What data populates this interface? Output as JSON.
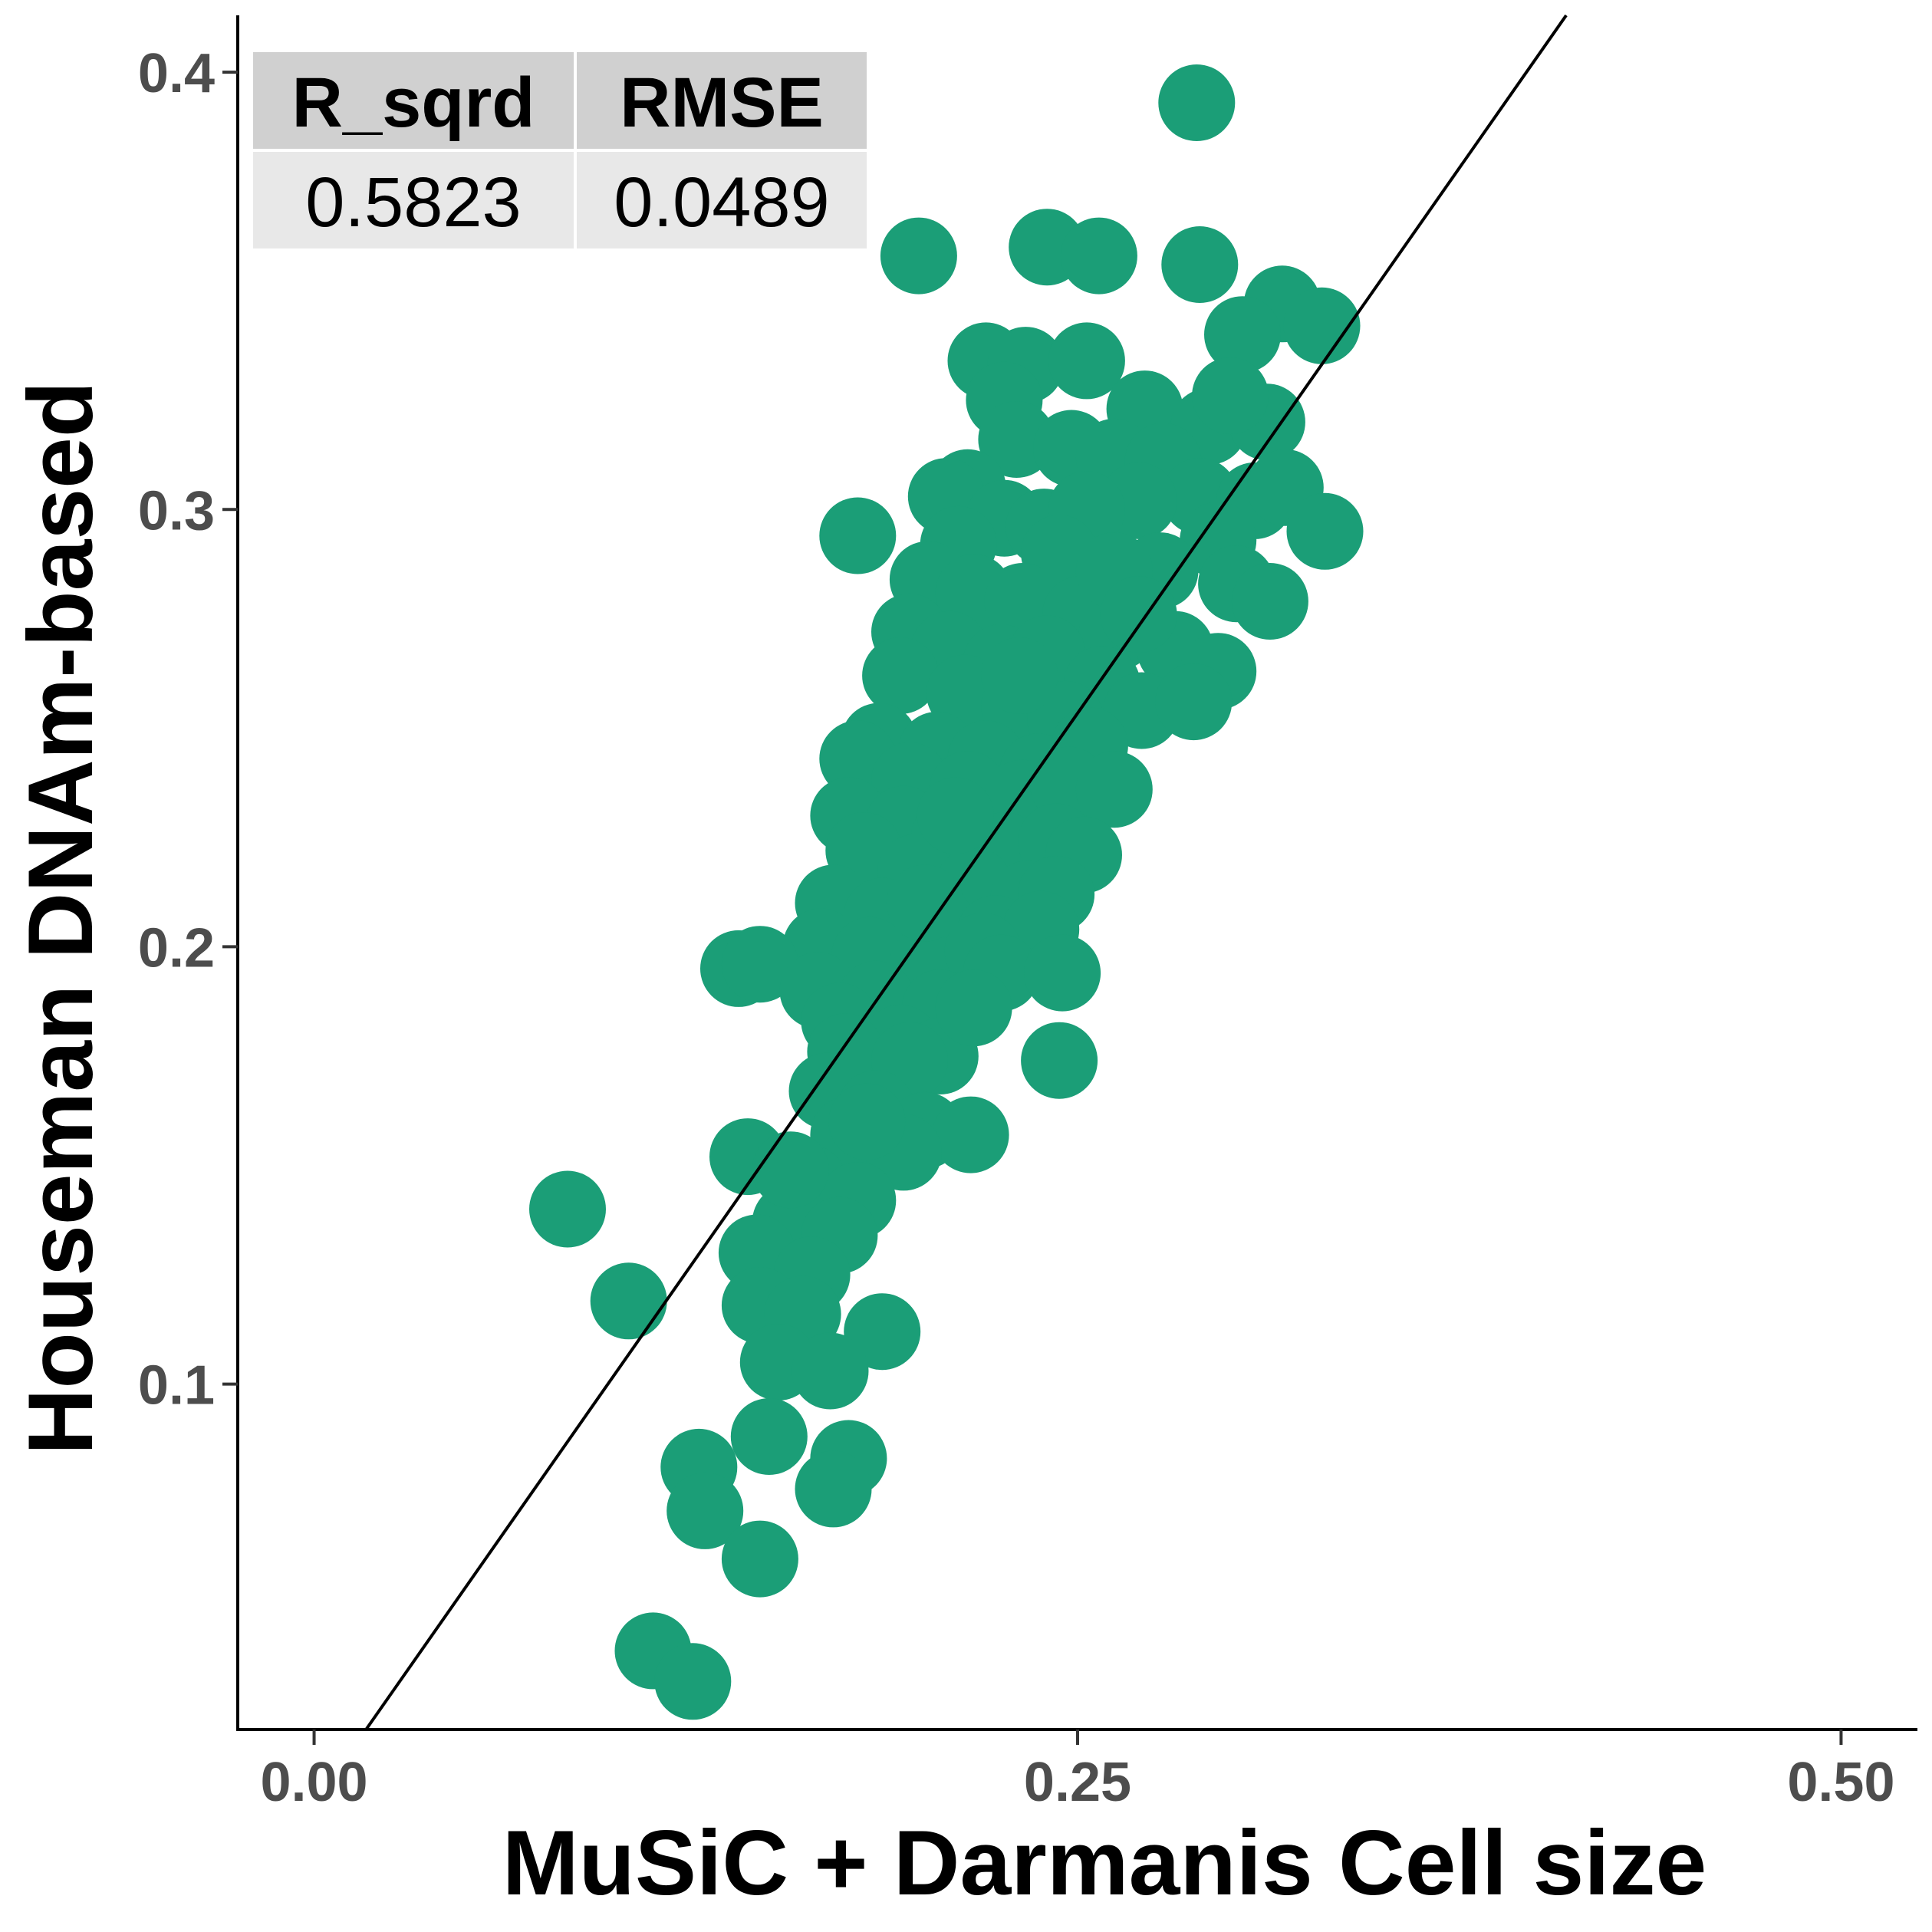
{
  "chart_data": {
    "type": "scatter",
    "xlabel": "MuSiC + Darmanis Cell size",
    "ylabel": "Houseman DNAm-based",
    "xlim": [
      -0.025,
      0.525
    ],
    "ylim": [
      0.021,
      0.413
    ],
    "x_ticks": [
      {
        "value": 0.0,
        "label": "0.00"
      },
      {
        "value": 0.25,
        "label": "0.25"
      },
      {
        "value": 0.5,
        "label": "0.50"
      }
    ],
    "y_ticks": [
      {
        "value": 0.1,
        "label": "0.1"
      },
      {
        "value": 0.2,
        "label": "0.2"
      },
      {
        "value": 0.3,
        "label": "0.3"
      },
      {
        "value": 0.4,
        "label": "0.4"
      }
    ],
    "point_color": "#1b9e77",
    "fit_line": {
      "x": [
        0.017,
        0.41
      ],
      "y": [
        0.021,
        0.413
      ],
      "color": "#000000"
    },
    "stats_table": {
      "headers": [
        "R_sqrd",
        "RMSE"
      ],
      "values": [
        "0.5823",
        "0.0489"
      ],
      "header_color": "#d0d0d0",
      "value_color": "#e8e8e8"
    },
    "points": [
      [
        0.289,
        0.393
      ],
      [
        0.198,
        0.358
      ],
      [
        0.24,
        0.36
      ],
      [
        0.257,
        0.358
      ],
      [
        0.29,
        0.356
      ],
      [
        0.317,
        0.347
      ],
      [
        0.33,
        0.342
      ],
      [
        0.304,
        0.34
      ],
      [
        0.22,
        0.334
      ],
      [
        0.233,
        0.333
      ],
      [
        0.253,
        0.334
      ],
      [
        0.226,
        0.325
      ],
      [
        0.272,
        0.323
      ],
      [
        0.293,
        0.319
      ],
      [
        0.312,
        0.32
      ],
      [
        0.3,
        0.326
      ],
      [
        0.23,
        0.316
      ],
      [
        0.248,
        0.314
      ],
      [
        0.262,
        0.312
      ],
      [
        0.278,
        0.311
      ],
      [
        0.29,
        0.303
      ],
      [
        0.27,
        0.302
      ],
      [
        0.214,
        0.305
      ],
      [
        0.207,
        0.303
      ],
      [
        0.226,
        0.298
      ],
      [
        0.239,
        0.296
      ],
      [
        0.253,
        0.3
      ],
      [
        0.308,
        0.302
      ],
      [
        0.318,
        0.305
      ],
      [
        0.331,
        0.295
      ],
      [
        0.178,
        0.294
      ],
      [
        0.211,
        0.292
      ],
      [
        0.244,
        0.29
      ],
      [
        0.296,
        0.293
      ],
      [
        0.277,
        0.286
      ],
      [
        0.302,
        0.283
      ],
      [
        0.313,
        0.279
      ],
      [
        0.201,
        0.284
      ],
      [
        0.216,
        0.281
      ],
      [
        0.232,
        0.279
      ],
      [
        0.251,
        0.276
      ],
      [
        0.263,
        0.272
      ],
      [
        0.195,
        0.272
      ],
      [
        0.208,
        0.268
      ],
      [
        0.225,
        0.265
      ],
      [
        0.24,
        0.267
      ],
      [
        0.258,
        0.26
      ],
      [
        0.282,
        0.268
      ],
      [
        0.296,
        0.263
      ],
      [
        0.192,
        0.262
      ],
      [
        0.213,
        0.258
      ],
      [
        0.231,
        0.255
      ],
      [
        0.246,
        0.252
      ],
      [
        0.271,
        0.254
      ],
      [
        0.288,
        0.256
      ],
      [
        0.185,
        0.247
      ],
      [
        0.204,
        0.245
      ],
      [
        0.22,
        0.243
      ],
      [
        0.237,
        0.24
      ],
      [
        0.254,
        0.246
      ],
      [
        0.178,
        0.243
      ],
      [
        0.195,
        0.238
      ],
      [
        0.214,
        0.236
      ],
      [
        0.232,
        0.234
      ],
      [
        0.247,
        0.237
      ],
      [
        0.262,
        0.236
      ],
      [
        0.175,
        0.23
      ],
      [
        0.193,
        0.228
      ],
      [
        0.208,
        0.225
      ],
      [
        0.226,
        0.222
      ],
      [
        0.243,
        0.224
      ],
      [
        0.252,
        0.221
      ],
      [
        0.18,
        0.222
      ],
      [
        0.197,
        0.217
      ],
      [
        0.216,
        0.214
      ],
      [
        0.234,
        0.211
      ],
      [
        0.243,
        0.212
      ],
      [
        0.17,
        0.21
      ],
      [
        0.186,
        0.207
      ],
      [
        0.204,
        0.205
      ],
      [
        0.223,
        0.203
      ],
      [
        0.238,
        0.204
      ],
      [
        0.166,
        0.2
      ],
      [
        0.182,
        0.198
      ],
      [
        0.201,
        0.196
      ],
      [
        0.219,
        0.199
      ],
      [
        0.225,
        0.194
      ],
      [
        0.245,
        0.194
      ],
      [
        0.139,
        0.195
      ],
      [
        0.146,
        0.196
      ],
      [
        0.165,
        0.19
      ],
      [
        0.184,
        0.188
      ],
      [
        0.205,
        0.186
      ],
      [
        0.172,
        0.183
      ],
      [
        0.192,
        0.178
      ],
      [
        0.205,
        0.175
      ],
      [
        0.174,
        0.176
      ],
      [
        0.195,
        0.174
      ],
      [
        0.244,
        0.174
      ],
      [
        0.168,
        0.167
      ],
      [
        0.184,
        0.163
      ],
      [
        0.2,
        0.158
      ],
      [
        0.215,
        0.157
      ],
      [
        0.175,
        0.157
      ],
      [
        0.193,
        0.153
      ],
      [
        0.142,
        0.152
      ],
      [
        0.162,
        0.146
      ],
      [
        0.178,
        0.142
      ],
      [
        0.083,
        0.14
      ],
      [
        0.156,
        0.137
      ],
      [
        0.172,
        0.134
      ],
      [
        0.145,
        0.13
      ],
      [
        0.163,
        0.125
      ],
      [
        0.103,
        0.119
      ],
      [
        0.146,
        0.118
      ],
      [
        0.16,
        0.116
      ],
      [
        0.186,
        0.112
      ],
      [
        0.152,
        0.105
      ],
      [
        0.169,
        0.103
      ],
      [
        0.149,
        0.088
      ],
      [
        0.175,
        0.083
      ],
      [
        0.126,
        0.081
      ],
      [
        0.17,
        0.076
      ],
      [
        0.128,
        0.071
      ],
      [
        0.146,
        0.06
      ],
      [
        0.111,
        0.039
      ],
      [
        0.124,
        0.032
      ],
      [
        0.156,
        0.149
      ],
      [
        0.2,
        0.21
      ],
      [
        0.216,
        0.186
      ],
      [
        0.231,
        0.262
      ],
      [
        0.262,
        0.286
      ],
      [
        0.27,
        0.276
      ],
      [
        0.181,
        0.16
      ],
      [
        0.21,
        0.23
      ]
    ]
  }
}
